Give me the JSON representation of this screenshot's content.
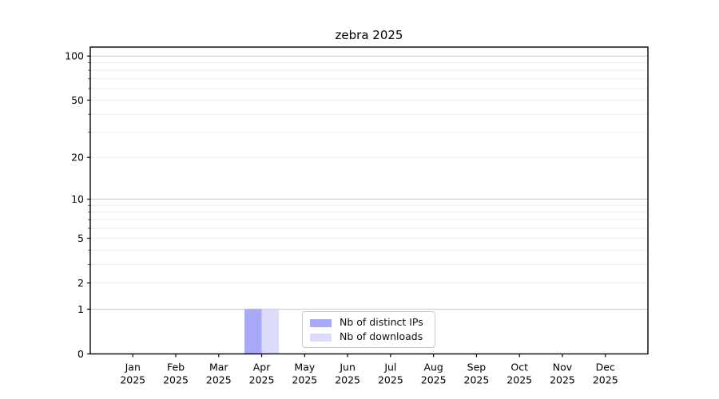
{
  "chart_data": {
    "type": "bar",
    "title": "zebra 2025",
    "categories": [
      "Jan",
      "Feb",
      "Mar",
      "Apr",
      "May",
      "Jun",
      "Jul",
      "Aug",
      "Sep",
      "Oct",
      "Nov",
      "Dec"
    ],
    "x_year": "2025",
    "series": [
      {
        "name": "Nb of distinct IPs",
        "color": "#a9a9f8",
        "values": [
          0,
          0,
          0,
          1,
          0,
          0,
          0,
          0,
          0,
          0,
          0,
          0
        ]
      },
      {
        "name": "Nb of downloads",
        "color": "#dcdcf8",
        "values": [
          0,
          0,
          0,
          1,
          0,
          0,
          0,
          0,
          0,
          0,
          0,
          0
        ]
      }
    ],
    "yscale": "log1p",
    "ylabel": "",
    "xlabel": "",
    "ylim": [
      0,
      115
    ],
    "xlim": [
      -0.99,
      11.99
    ],
    "y_ticks": [
      0,
      1,
      2,
      5,
      10,
      20,
      50,
      100
    ],
    "bar_width": 0.4,
    "grid": {
      "major": [
        1,
        10,
        100
      ],
      "minor": [
        2,
        3,
        4,
        5,
        6,
        7,
        8,
        9,
        20,
        30,
        40,
        50,
        60,
        70,
        80,
        90
      ]
    },
    "legend_position": "lower center",
    "style": {
      "background": "#ffffff",
      "spine_color": "#000000",
      "tick_label_color": "#000000",
      "grid_major_color": "#c8c8c8",
      "grid_minor_color": "#ebebeb"
    }
  }
}
